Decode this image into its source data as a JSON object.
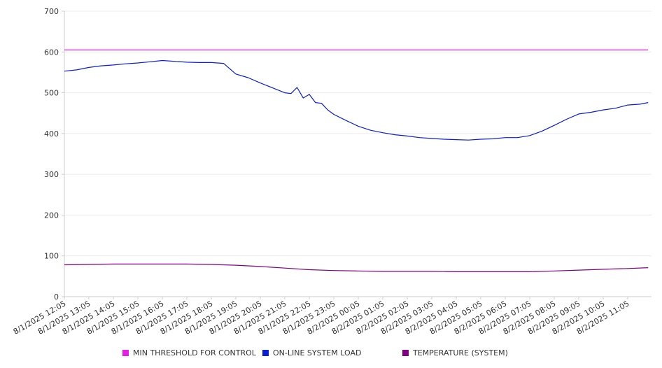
{
  "chart_data": {
    "type": "line",
    "title": "",
    "xlabel": "",
    "ylabel": "",
    "ylim": [
      0,
      700
    ],
    "y_ticks": [
      0,
      100,
      200,
      300,
      400,
      500,
      600,
      700
    ],
    "x_ticks": [
      "8/1/2025 12:05",
      "8/1/2025 13:05",
      "8/1/2025 14:05",
      "8/1/2025 15:05",
      "8/1/2025 16:05",
      "8/1/2025 17:05",
      "8/1/2025 18:05",
      "8/1/2025 19:05",
      "8/1/2025 20:05",
      "8/1/2025 21:05",
      "8/1/2025 22:05",
      "8/1/2025 23:05",
      "8/2/2025 00:05",
      "8/2/2025 01:05",
      "8/2/2025 02:05",
      "8/2/2025 03:05",
      "8/2/2025 04:05",
      "8/2/2025 05:05",
      "8/2/2025 06:05",
      "8/2/2025 07:05",
      "8/2/2025 08:05",
      "8/2/2025 09:05",
      "8/2/2025 10:05",
      "8/2/2025 11:05"
    ],
    "grid": true,
    "legend_position": "bottom",
    "series": [
      {
        "name": "MIN THRESHOLD FOR CONTROL",
        "color": "#e61ee6",
        "x": [
          "8/1/2025 12:05",
          "8/2/2025 11:55"
        ],
        "values": [
          605,
          605
        ]
      },
      {
        "name": "ON-LINE SYSTEM LOAD",
        "color": "#0a1ed2",
        "x": [
          "8/1/2025 12:05",
          "8/1/2025 12:35",
          "8/1/2025 13:05",
          "8/1/2025 13:35",
          "8/1/2025 14:05",
          "8/1/2025 14:35",
          "8/1/2025 15:05",
          "8/1/2025 15:35",
          "8/1/2025 16:05",
          "8/1/2025 16:35",
          "8/1/2025 17:05",
          "8/1/2025 17:35",
          "8/1/2025 18:05",
          "8/1/2025 18:35",
          "8/1/2025 19:05",
          "8/1/2025 19:35",
          "8/1/2025 20:05",
          "8/1/2025 20:35",
          "8/1/2025 21:05",
          "8/1/2025 21:20",
          "8/1/2025 21:35",
          "8/1/2025 21:50",
          "8/1/2025 22:05",
          "8/1/2025 22:20",
          "8/1/2025 22:35",
          "8/1/2025 22:50",
          "8/1/2025 23:05",
          "8/1/2025 23:35",
          "8/2/2025 00:05",
          "8/2/2025 00:35",
          "8/2/2025 01:05",
          "8/2/2025 01:35",
          "8/2/2025 02:05",
          "8/2/2025 02:35",
          "8/2/2025 03:05",
          "8/2/2025 03:35",
          "8/2/2025 04:05",
          "8/2/2025 04:35",
          "8/2/2025 05:05",
          "8/2/2025 05:35",
          "8/2/2025 06:05",
          "8/2/2025 06:35",
          "8/2/2025 07:05",
          "8/2/2025 07:35",
          "8/2/2025 08:05",
          "8/2/2025 08:35",
          "8/2/2025 09:05",
          "8/2/2025 09:35",
          "8/2/2025 10:05",
          "8/2/2025 10:35",
          "8/2/2025 11:05",
          "8/2/2025 11:35",
          "8/2/2025 11:55"
        ],
        "values": [
          553,
          556,
          562,
          566,
          568,
          571,
          573,
          576,
          579,
          577,
          575,
          574,
          574,
          572,
          546,
          537,
          524,
          512,
          500,
          498,
          513,
          487,
          496,
          476,
          474,
          458,
          447,
          432,
          418,
          408,
          402,
          397,
          394,
          390,
          388,
          386,
          385,
          384,
          386,
          387,
          390,
          390,
          395,
          406,
          420,
          435,
          448,
          452,
          458,
          462,
          470,
          472,
          476
        ]
      },
      {
        "name": "TEMPERATURE (SYSTEM)",
        "color": "#800080",
        "x": [
          "8/1/2025 12:05",
          "8/1/2025 13:05",
          "8/1/2025 14:05",
          "8/1/2025 15:05",
          "8/1/2025 16:05",
          "8/1/2025 17:05",
          "8/1/2025 18:05",
          "8/1/2025 19:05",
          "8/1/2025 20:05",
          "8/1/2025 21:05",
          "8/1/2025 22:05",
          "8/1/2025 23:05",
          "8/2/2025 00:05",
          "8/2/2025 01:05",
          "8/2/2025 02:05",
          "8/2/2025 03:05",
          "8/2/2025 04:05",
          "8/2/2025 05:05",
          "8/2/2025 06:05",
          "8/2/2025 07:05",
          "8/2/2025 08:05",
          "8/2/2025 09:05",
          "8/2/2025 10:05",
          "8/2/2025 11:05",
          "8/2/2025 11:55"
        ],
        "values": [
          78,
          79,
          80,
          80,
          80,
          80,
          79,
          77,
          74,
          70,
          66,
          64,
          63,
          62,
          62,
          62,
          61,
          61,
          61,
          61,
          63,
          65,
          67,
          69,
          71
        ]
      }
    ]
  }
}
